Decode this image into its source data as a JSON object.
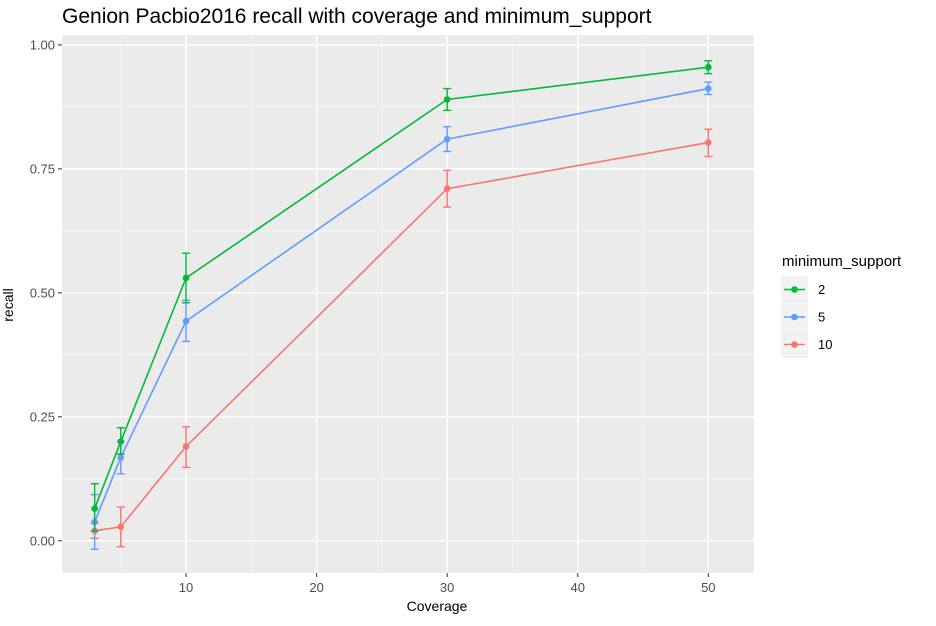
{
  "chart_data": {
    "type": "line",
    "title": "Genion Pacbio2016 recall with coverage and minimum_support",
    "xlabel": "Coverage",
    "ylabel": "recall",
    "x": [
      3,
      5,
      10,
      30,
      50
    ],
    "x_ticks": [
      "10",
      "20",
      "30",
      "40",
      "50"
    ],
    "y_ticks": [
      "0.00",
      "0.25",
      "0.50",
      "0.75",
      "1.00"
    ],
    "xlim": [
      0.5,
      53.5
    ],
    "ylim": [
      -0.065,
      1.02
    ],
    "grid": true,
    "legend": {
      "title": "minimum_support",
      "position": "right"
    },
    "series": [
      {
        "name": "2",
        "color": "#00BA38",
        "values": [
          0.065,
          0.2,
          0.53,
          0.89,
          0.955
        ],
        "err_low": [
          0.02,
          0.175,
          0.48,
          0.868,
          0.942
        ],
        "err_high": [
          0.115,
          0.228,
          0.58,
          0.912,
          0.968
        ]
      },
      {
        "name": "5",
        "color": "#619CFF",
        "values": [
          0.038,
          0.168,
          0.443,
          0.81,
          0.912
        ],
        "err_low": [
          -0.017,
          0.135,
          0.402,
          0.785,
          0.9
        ],
        "err_high": [
          0.093,
          0.2,
          0.485,
          0.835,
          0.925
        ]
      },
      {
        "name": "10",
        "color": "#F8766D",
        "values": [
          0.02,
          0.028,
          0.19,
          0.71,
          0.803
        ],
        "err_low": [
          0.005,
          -0.012,
          0.148,
          0.673,
          0.775
        ],
        "err_high": [
          0.035,
          0.068,
          0.23,
          0.747,
          0.83
        ]
      }
    ]
  }
}
